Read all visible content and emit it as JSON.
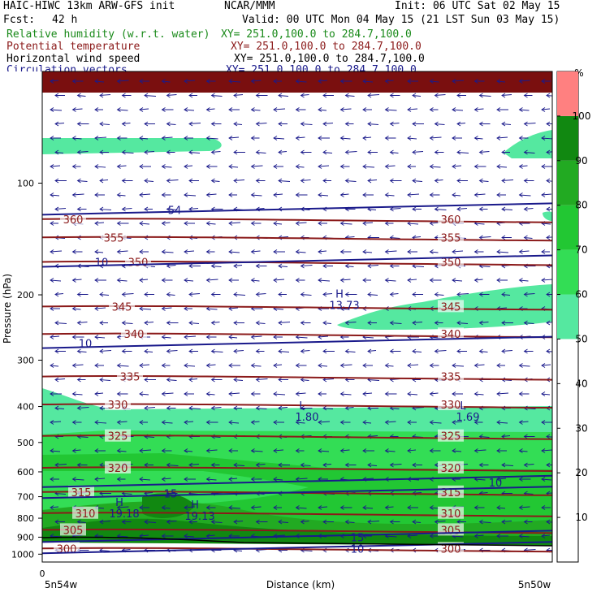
{
  "header": {
    "model": "HAIC-HIWC 13km ARW-GFS init",
    "org": "NCAR/MMM",
    "init": "Init: 06 UTC Sat 02 May 15",
    "fcst_label": "Fcst:",
    "fcst_value": "42 h",
    "valid": "Valid: 00 UTC Mon 04 May 15 (21 LST Sun 03 May 15)",
    "fields": [
      {
        "name": "Relative humidity (w.r.t. water)",
        "xy": "XY= 251.0,100.0 to 284.7,100.0",
        "color": "#1a8a1a"
      },
      {
        "name": "Potential temperature",
        "xy": "XY= 251.0,100.0 to 284.7,100.0",
        "color": "#8b1a1a"
      },
      {
        "name": "Horizontal wind speed",
        "xy": "XY= 251.0,100.0 to 284.7,100.0",
        "color": "#000000"
      },
      {
        "name": "Circulation vectors",
        "xy": "XY= 251.0,100.0 to 284.7,100.0",
        "color": "#1a1a8b"
      }
    ]
  },
  "chart_data": {
    "type": "heatmap",
    "xlabel": "Distance (km)",
    "ylabel": "Pressure (hPa)",
    "x_ticks": [
      "0"
    ],
    "x_end_labels": {
      "left": "5n54w",
      "right": "5n50w"
    },
    "y_ticks": [
      100,
      200,
      300,
      400,
      500,
      600,
      700,
      800,
      900,
      1000
    ],
    "ylim": [
      1050,
      50
    ],
    "y_scale": "log",
    "colorbar": {
      "unit": "%",
      "ticks": [
        10,
        20,
        30,
        40,
        50,
        60,
        70,
        80,
        90,
        100
      ],
      "colors": [
        {
          "range": [
            50,
            60
          ],
          "color": "#55e8a0"
        },
        {
          "range": [
            60,
            70
          ],
          "color": "#33dd55"
        },
        {
          "range": [
            70,
            80
          ],
          "color": "#22c733"
        },
        {
          "range": [
            80,
            90
          ],
          "color": "#22aa22"
        },
        {
          "range": [
            90,
            100
          ],
          "color": "#118811"
        },
        {
          "range": [
            100,
            110
          ],
          "color": "#ff8080"
        }
      ]
    },
    "theta_contours": [
      {
        "value": 360,
        "p": 125
      },
      {
        "value": 355,
        "p": 140
      },
      {
        "value": 350,
        "p": 163
      },
      {
        "value": 345,
        "p": 215
      },
      {
        "value": 340,
        "p": 255
      },
      {
        "value": 335,
        "p": 332
      },
      {
        "value": 330,
        "p": 395
      },
      {
        "value": 325,
        "p": 480
      },
      {
        "value": 320,
        "p": 585
      },
      {
        "value": 315,
        "p": 680
      },
      {
        "value": 310,
        "p": 775
      },
      {
        "value": 305,
        "p": 860
      },
      {
        "value": 300,
        "p": 965
      }
    ],
    "wind_labels": [
      {
        "text": "54",
        "p": 118
      },
      {
        "text": "10",
        "p": 163
      },
      {
        "text": "10",
        "p": 270
      },
      {
        "text": "10",
        "p": 640
      },
      {
        "text": "15",
        "p": 685
      },
      {
        "text": "15",
        "p": 900
      },
      {
        "text": "10",
        "p": 965
      }
    ],
    "extrema": [
      {
        "kind": "H",
        "value": "13.73",
        "p": 210
      },
      {
        "kind": "L",
        "value": "1.80",
        "p": 420
      },
      {
        "kind": "L",
        "value": "1.69",
        "p": 420
      },
      {
        "kind": "H",
        "value": "19.18",
        "p": 765
      },
      {
        "kind": "H",
        "value": "19.13",
        "p": 775
      }
    ]
  }
}
